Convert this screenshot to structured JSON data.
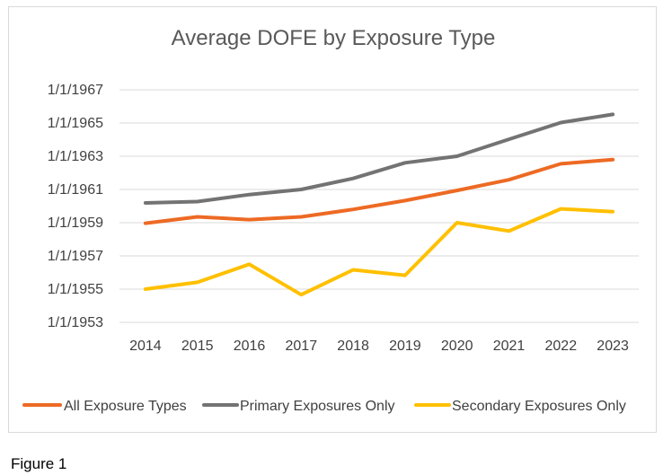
{
  "figure_caption": "Figure 1",
  "chart_data": {
    "type": "line",
    "title": "Average DOFE by Exposure Type",
    "xlabel": "",
    "ylabel": "",
    "categories": [
      "2014",
      "2015",
      "2016",
      "2017",
      "2018",
      "2019",
      "2020",
      "2021",
      "2022",
      "2023"
    ],
    "y_scale": "date",
    "ylim": [
      "1953-01-01",
      "1967-01-01"
    ],
    "y_ticks": [
      "1/1/1953",
      "1/1/1955",
      "1/1/1957",
      "1/1/1959",
      "1/1/1961",
      "1/1/1963",
      "1/1/1965",
      "1/1/1967"
    ],
    "grid": true,
    "legend_position": "bottom",
    "series": [
      {
        "name": "All Exposure Types",
        "color": "#ED6A24",
        "values": [
          "1958-12-20",
          "1959-05-10",
          "1959-03-10",
          "1959-05-10",
          "1959-10-20",
          "1960-05-01",
          "1960-12-10",
          "1961-08-01",
          "1962-07-20",
          "1962-10-20"
        ]
      },
      {
        "name": "Primary Exposures Only",
        "color": "#737373",
        "values": [
          "1960-03-10",
          "1960-04-10",
          "1960-09-10",
          "1961-01-01",
          "1961-09-01",
          "1962-08-10",
          "1963-01-01",
          "1964-01-10",
          "1965-01-10",
          "1965-07-10"
        ]
      },
      {
        "name": "Secondary Exposures Only",
        "color": "#FFC000",
        "values": [
          "1955-01-01",
          "1955-06-01",
          "1956-07-01",
          "1954-09-01",
          "1956-03-01",
          "1955-11-01",
          "1959-01-01",
          "1958-07-01",
          "1959-11-01",
          "1959-09-01"
        ]
      }
    ]
  }
}
